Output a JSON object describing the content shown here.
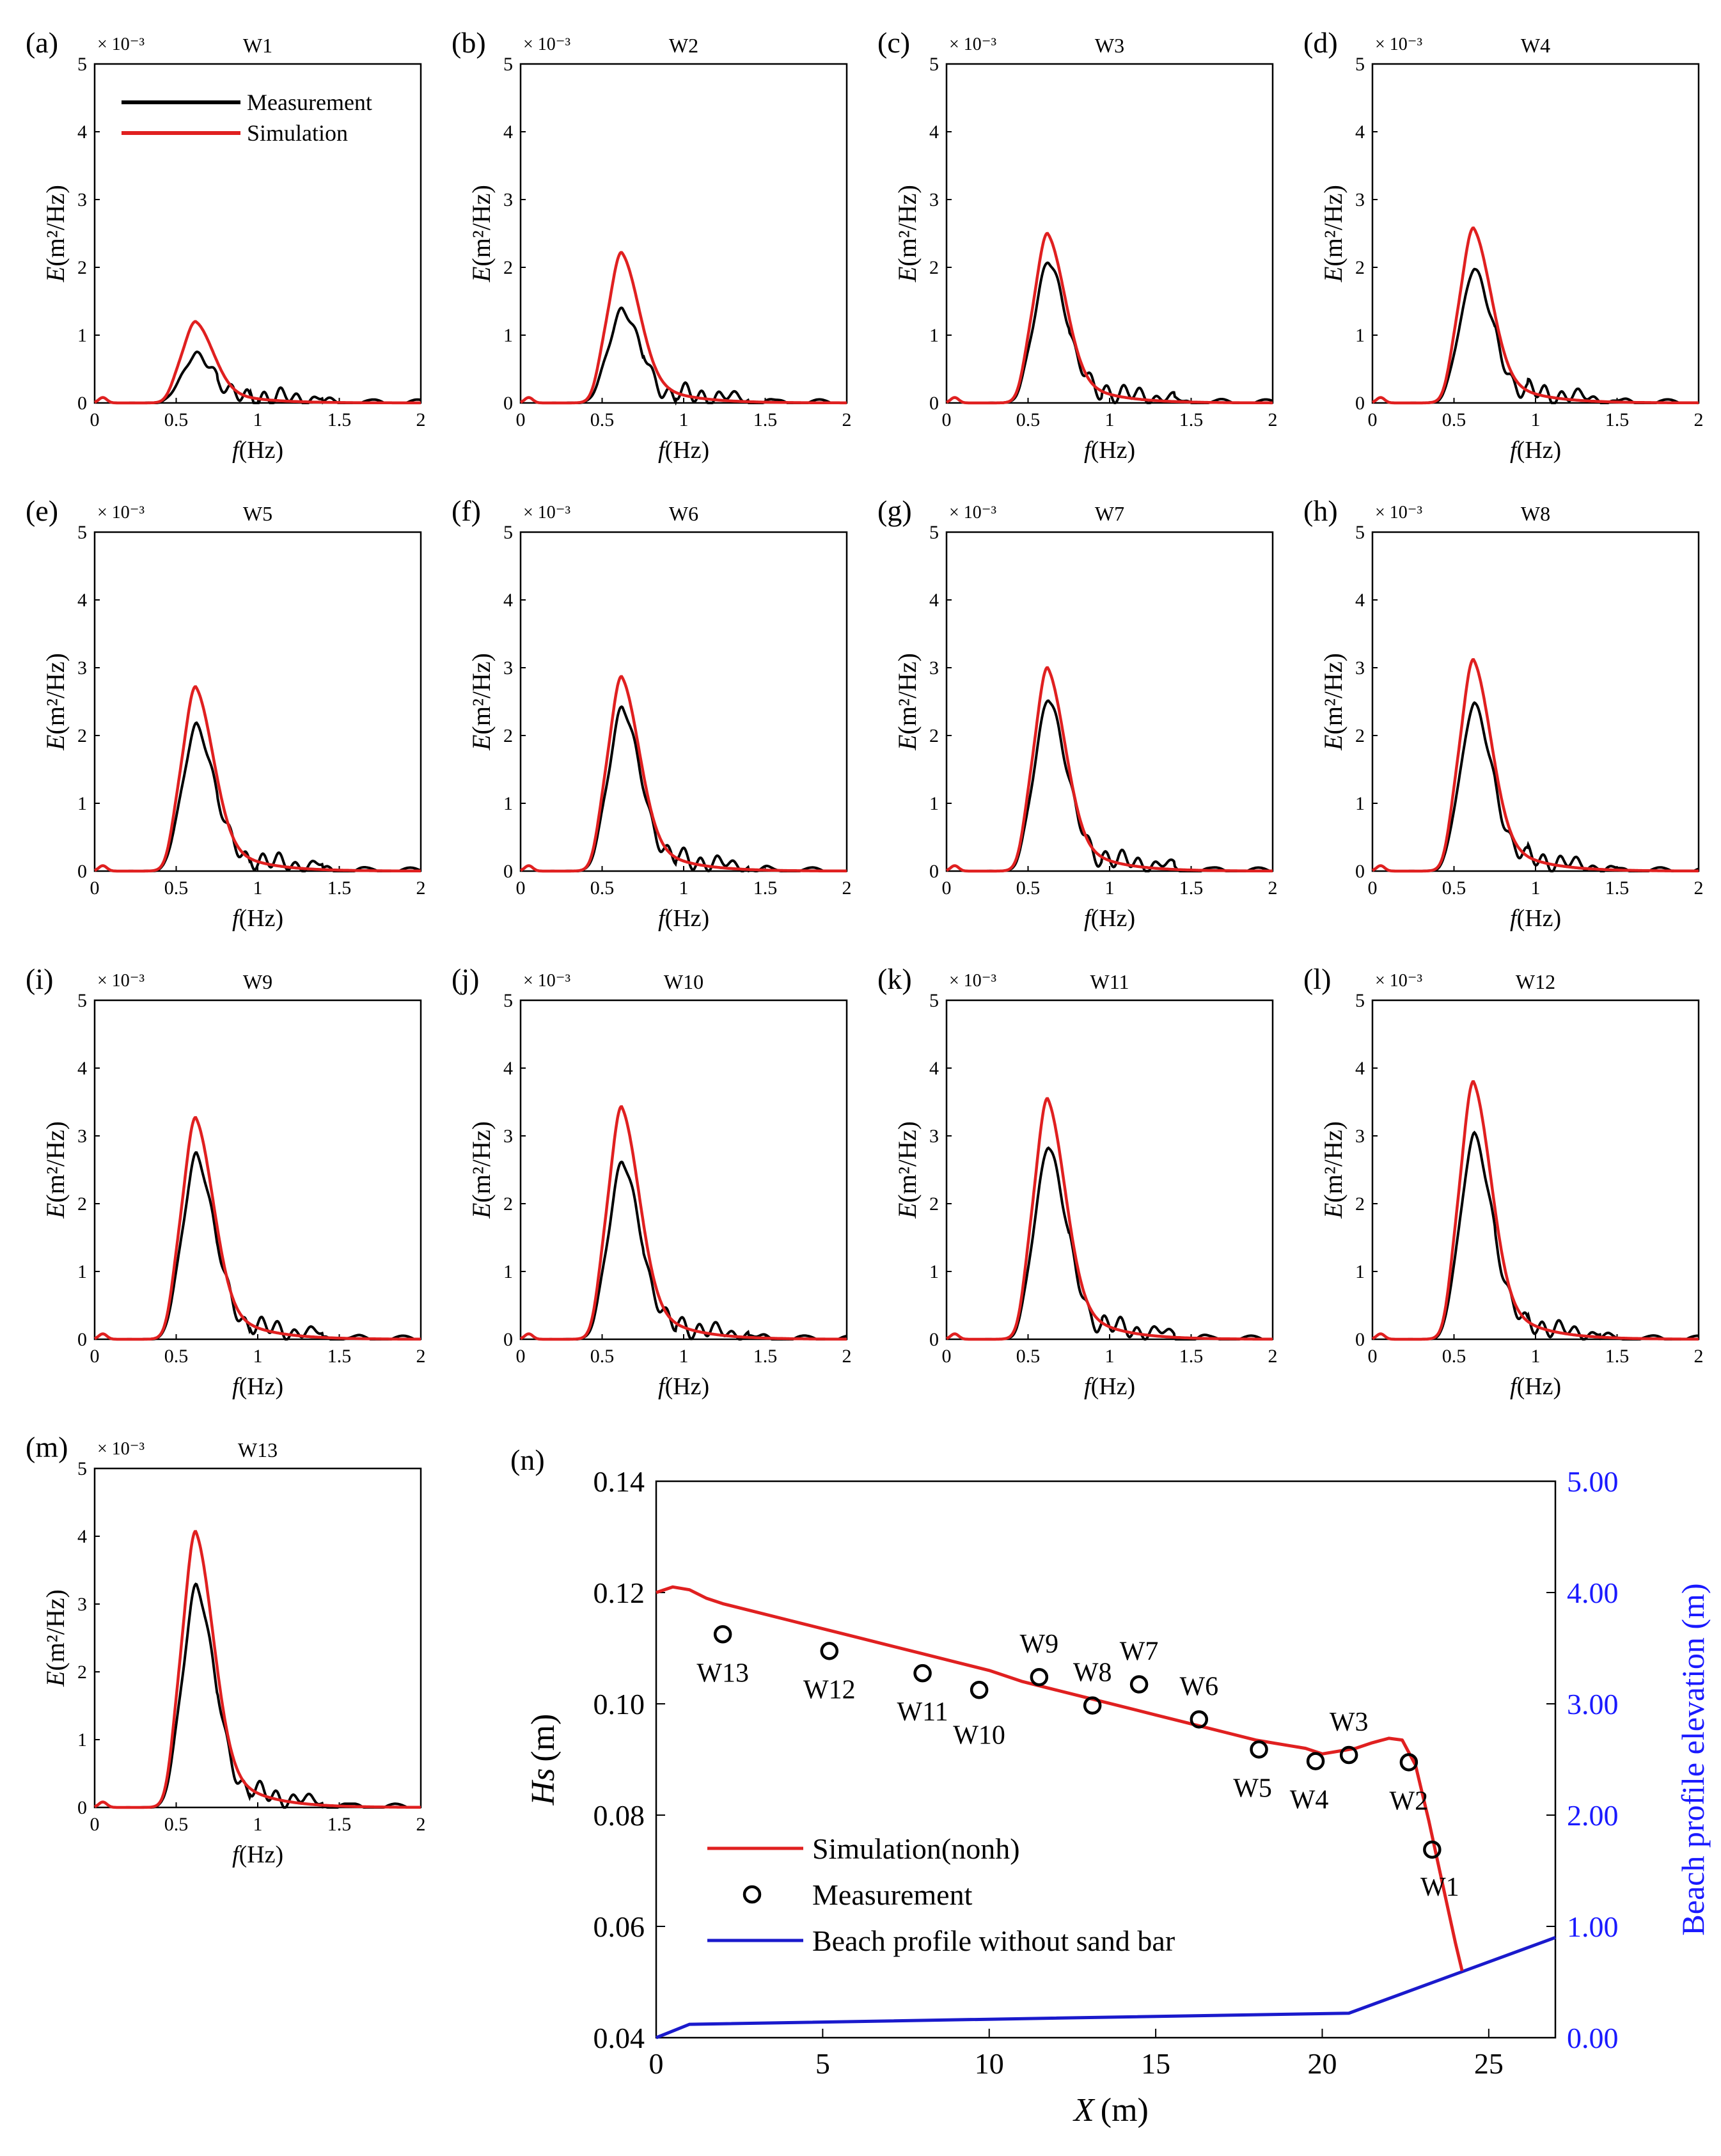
{
  "chart_data": {
    "spectra": {
      "type": "line",
      "ylabel_var": "E",
      "ylabel_unit": "(m²/Hz)",
      "xlabel_var": "f",
      "xlabel_unit": "(Hz)",
      "exponent": "× 10⁻³",
      "xlim": [
        0,
        2
      ],
      "ylim": [
        0,
        5
      ],
      "xticks": [
        "0",
        "0.5",
        "1",
        "1.5",
        "2"
      ],
      "yticks": [
        "0",
        "1",
        "2",
        "3",
        "4",
        "5"
      ],
      "legend": {
        "measurement": "Measurement",
        "simulation": "Simulation"
      },
      "series_colors": {
        "measurement": "#000000",
        "simulation": "#e02020"
      },
      "peak_frequency_hz": 0.62,
      "panels": [
        {
          "letter": "(a)",
          "title": "W1",
          "measured_peak": 0.72,
          "simulated_peak": 1.2
        },
        {
          "letter": "(b)",
          "title": "W2",
          "measured_peak": 1.38,
          "simulated_peak": 2.22
        },
        {
          "letter": "(c)",
          "title": "W3",
          "measured_peak": 2.1,
          "simulated_peak": 2.5
        },
        {
          "letter": "(d)",
          "title": "W4",
          "measured_peak": 1.98,
          "simulated_peak": 2.58
        },
        {
          "letter": "(e)",
          "title": "W5",
          "measured_peak": 2.15,
          "simulated_peak": 2.72
        },
        {
          "letter": "(f)",
          "title": "W6",
          "measured_peak": 2.42,
          "simulated_peak": 2.87
        },
        {
          "letter": "(g)",
          "title": "W7",
          "measured_peak": 2.55,
          "simulated_peak": 3.0
        },
        {
          "letter": "(h)",
          "title": "W8",
          "measured_peak": 2.47,
          "simulated_peak": 3.12
        },
        {
          "letter": "(i)",
          "title": "W9",
          "measured_peak": 2.72,
          "simulated_peak": 3.27
        },
        {
          "letter": "(j)",
          "title": "W10",
          "measured_peak": 2.63,
          "simulated_peak": 3.43
        },
        {
          "letter": "(k)",
          "title": "W11",
          "measured_peak": 2.85,
          "simulated_peak": 3.55
        },
        {
          "letter": "(l)",
          "title": "W12",
          "measured_peak": 3.02,
          "simulated_peak": 3.8
        },
        {
          "letter": "(m)",
          "title": "W13",
          "measured_peak": 3.27,
          "simulated_peak": 4.07
        }
      ]
    },
    "hs_profile": {
      "letter": "(n)",
      "type": "line+scatter",
      "xlabel_var": "X",
      "xlabel_unit": "(m)",
      "ylabel_var": "Hs",
      "ylabel_unit": "(m)",
      "y2label": "Beach profile elevation (m)",
      "xlim": [
        0,
        27
      ],
      "ylim": [
        0.04,
        0.14
      ],
      "y2lim": [
        0,
        5
      ],
      "xticks": [
        "0",
        "5",
        "10",
        "15",
        "20",
        "25"
      ],
      "yticks": [
        "0.04",
        "0.06",
        "0.08",
        "0.10",
        "0.12",
        "0.14"
      ],
      "y2ticks": [
        "0.00",
        "1.00",
        "2.00",
        "3.00",
        "4.00",
        "5.00"
      ],
      "legend": {
        "simulation": "Simulation(nonh)",
        "measurement": "Measurement",
        "profile": "Beach profile without sand bar"
      },
      "series_colors": {
        "simulation": "#e02020",
        "measurement": "#000000",
        "profile": "#1a1acc"
      },
      "simulation": {
        "x": [
          0,
          0.5,
          1.0,
          1.5,
          2.0,
          3,
          4,
          5,
          6,
          7,
          8,
          9,
          10,
          11,
          12,
          13,
          14,
          15,
          16,
          17,
          18,
          19,
          19.5,
          20,
          20.5,
          21,
          21.5,
          22,
          22.4,
          22.8,
          23.2,
          23.6,
          24.0,
          24.2
        ],
        "y": [
          0.12,
          0.121,
          0.1205,
          0.119,
          0.118,
          0.1165,
          0.115,
          0.1135,
          0.112,
          0.1105,
          0.109,
          0.1075,
          0.106,
          0.104,
          0.1025,
          0.101,
          0.0995,
          0.098,
          0.0965,
          0.095,
          0.0935,
          0.0925,
          0.092,
          0.091,
          0.0915,
          0.092,
          0.093,
          0.0938,
          0.0935,
          0.089,
          0.079,
          0.068,
          0.057,
          0.052
        ]
      },
      "measurement": {
        "labels": [
          "W13",
          "W12",
          "W11",
          "W10",
          "W9",
          "W8",
          "W7",
          "W6",
          "W5",
          "W4",
          "W3",
          "W2",
          "W1"
        ],
        "x": [
          2.0,
          5.2,
          8.0,
          9.7,
          11.5,
          13.1,
          14.5,
          16.3,
          18.1,
          19.8,
          20.8,
          22.6,
          23.3
        ],
        "y": [
          0.1125,
          0.1095,
          0.1055,
          0.1025,
          0.1048,
          0.0997,
          0.1035,
          0.0972,
          0.0918,
          0.0897,
          0.0908,
          0.0895,
          0.0738
        ]
      },
      "profile": {
        "x": [
          0,
          1.0,
          20.8,
          27
        ],
        "elevation": [
          0.0,
          0.12,
          0.22,
          0.9
        ]
      }
    }
  }
}
